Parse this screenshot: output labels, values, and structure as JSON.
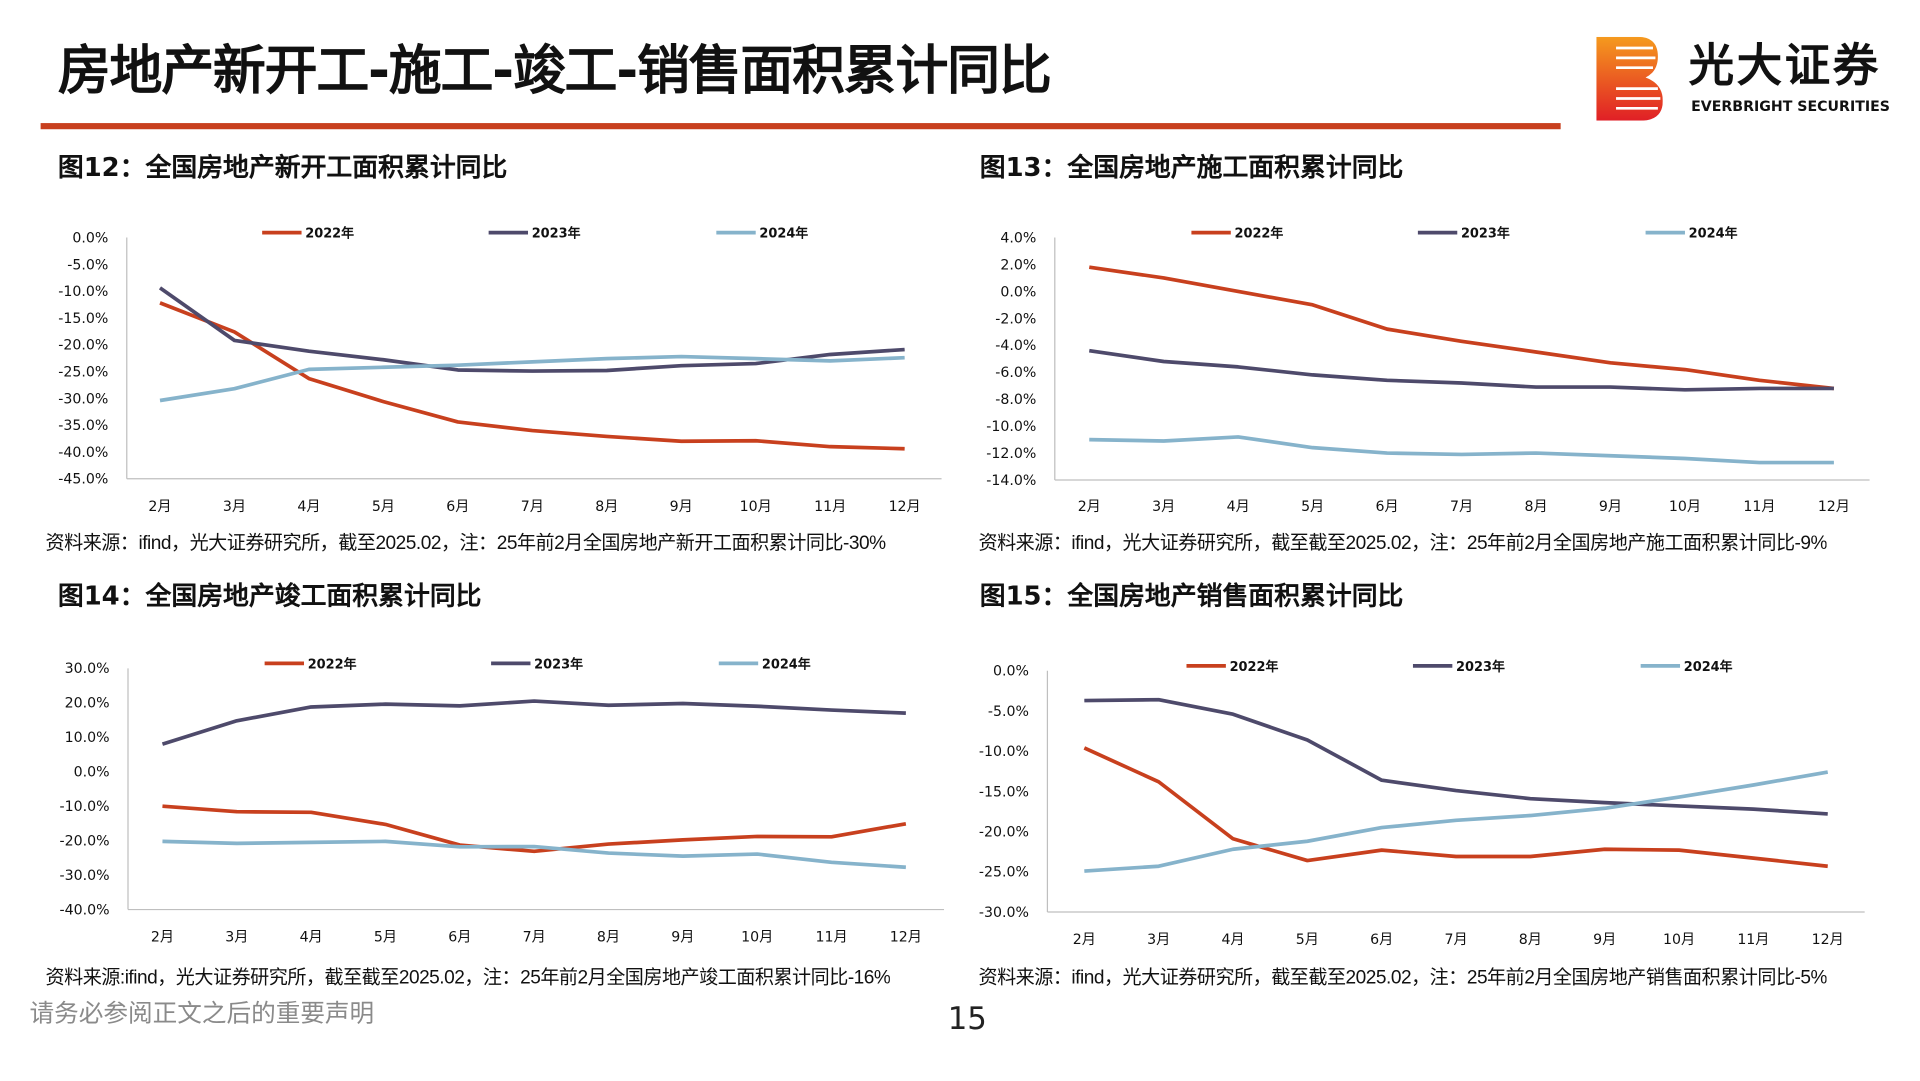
{
  "header": {
    "title": "房地产新开工-施工-竣工-销售面积累计同比"
  },
  "logo": {
    "name_cn": "光大证券",
    "name_en": "EVERBRIGHT SECURITIES"
  },
  "colors": {
    "accent": "#C8401E",
    "series_2022": "#C8401E",
    "series_2023": "#4E4A6B",
    "series_2024": "#86B3CB"
  },
  "footer": {
    "disclaimer": "请务必参阅正文之后的重要声明",
    "page_number": "15"
  },
  "chart_data": [
    {
      "type": "line",
      "title": "图12：全国房地产新开工面积累计同比",
      "source": "资料来源：ifind，光大证券研究所，截至2025.02，注：25年前2月全国房地产新开工面积累计同比-30%",
      "categories": [
        "2月",
        "3月",
        "4月",
        "5月",
        "6月",
        "7月",
        "8月",
        "9月",
        "10月",
        "11月",
        "12月"
      ],
      "ylim": [
        -45,
        0
      ],
      "ystep": 5,
      "ytick_format": "percent_1dp",
      "legend": "top",
      "grid": false,
      "series": [
        {
          "name": "2022年",
          "values": [
            -12.2,
            -17.6,
            -26.3,
            -30.6,
            -34.4,
            -36.0,
            -37.1,
            -38.0,
            -37.9,
            -39.0,
            -39.4
          ]
        },
        {
          "name": "2023年",
          "values": [
            -9.4,
            -19.2,
            -21.2,
            -22.8,
            -24.7,
            -24.9,
            -24.8,
            -23.9,
            -23.5,
            -21.8,
            -20.9
          ]
        },
        {
          "name": "2024年",
          "values": [
            -30.4,
            -28.2,
            -24.6,
            -24.2,
            -23.8,
            -23.2,
            -22.6,
            -22.2,
            -22.6,
            -23.0,
            -22.4
          ]
        }
      ]
    },
    {
      "type": "line",
      "title": "图13：全国房地产施工面积累计同比",
      "source": "资料来源：ifind，光大证券研究所，截至截至2025.02，注：25年前2月全国房地产施工面积累计同比-9%",
      "categories": [
        "2月",
        "3月",
        "4月",
        "5月",
        "6月",
        "7月",
        "8月",
        "9月",
        "10月",
        "11月",
        "12月"
      ],
      "ylim": [
        -14,
        4
      ],
      "ystep": 2,
      "ytick_format": "percent_1dp",
      "legend": "top",
      "grid": false,
      "series": [
        {
          "name": "2022年",
          "values": [
            1.8,
            1.0,
            0.0,
            -1.0,
            -2.8,
            -3.7,
            -4.5,
            -5.3,
            -5.8,
            -6.6,
            -7.2
          ]
        },
        {
          "name": "2023年",
          "values": [
            -4.4,
            -5.2,
            -5.6,
            -6.2,
            -6.6,
            -6.8,
            -7.1,
            -7.1,
            -7.3,
            -7.2,
            -7.2
          ]
        },
        {
          "name": "2024年",
          "values": [
            -11.0,
            -11.1,
            -10.8,
            -11.6,
            -12.0,
            -12.1,
            -12.0,
            -12.2,
            -12.4,
            -12.7,
            -12.7
          ]
        }
      ]
    },
    {
      "type": "line",
      "title": "图14：全国房地产竣工面积累计同比",
      "source": "资料来源:ifind，光大证券研究所，截至截至2025.02，注：25年前2月全国房地产竣工面积累计同比-16%",
      "categories": [
        "2月",
        "3月",
        "4月",
        "5月",
        "6月",
        "7月",
        "8月",
        "9月",
        "10月",
        "11月",
        "12月"
      ],
      "ylim": [
        -40,
        30
      ],
      "ystep": 10,
      "ytick_format": "percent_1dp",
      "legend": "top",
      "grid": false,
      "series": [
        {
          "name": "2022年",
          "values": [
            -10.0,
            -11.6,
            -11.8,
            -15.3,
            -21.3,
            -23.1,
            -21.0,
            -19.8,
            -18.8,
            -18.9,
            -15.1
          ]
        },
        {
          "name": "2023年",
          "values": [
            8.0,
            14.8,
            18.8,
            19.6,
            19.1,
            20.5,
            19.3,
            19.8,
            19.0,
            17.9,
            17.0
          ]
        },
        {
          "name": "2024年",
          "values": [
            -20.2,
            -20.8,
            -20.5,
            -20.2,
            -21.8,
            -21.7,
            -23.6,
            -24.5,
            -23.9,
            -26.3,
            -27.7
          ]
        }
      ]
    },
    {
      "type": "line",
      "title": "图15：全国房地产销售面积累计同比",
      "source": "资料来源：ifind，光大证券研究所，截至截至2025.02，注：25年前2月全国房地产销售面积累计同比-5%",
      "categories": [
        "2月",
        "3月",
        "4月",
        "5月",
        "6月",
        "7月",
        "8月",
        "9月",
        "10月",
        "11月",
        "12月"
      ],
      "ylim": [
        -30,
        0
      ],
      "ystep": 5,
      "ytick_format": "percent_1dp",
      "legend": "top",
      "grid": false,
      "series": [
        {
          "name": "2022年",
          "values": [
            -9.6,
            -13.8,
            -20.9,
            -23.6,
            -22.3,
            -23.1,
            -23.1,
            -22.2,
            -22.3,
            -23.3,
            -24.3
          ]
        },
        {
          "name": "2023年",
          "values": [
            -3.7,
            -3.6,
            -5.4,
            -8.6,
            -13.6,
            -14.9,
            -15.9,
            -16.4,
            -16.8,
            -17.2,
            -17.8
          ]
        },
        {
          "name": "2024年",
          "values": [
            -24.9,
            -24.3,
            -22.2,
            -21.2,
            -19.5,
            -18.6,
            -18.0,
            -17.1,
            -15.7,
            -14.2,
            -12.6
          ]
        }
      ]
    }
  ]
}
